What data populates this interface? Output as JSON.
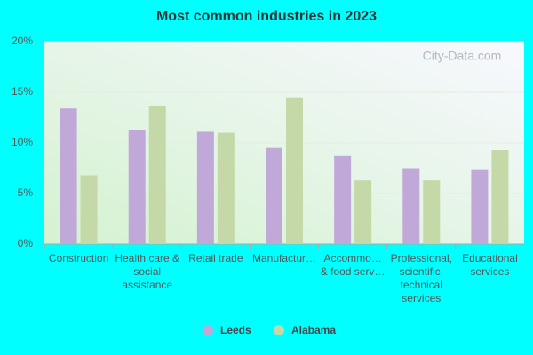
{
  "chart_data": {
    "type": "bar",
    "title": "Most common industries in 2023",
    "watermark": "City-Data.com",
    "categories": [
      "Construction",
      "Health care & social assistance",
      "Retail trade",
      "Manufactur…",
      "Accommo… & food serv…",
      "Professional, scientific, technical services",
      "Educational services"
    ],
    "series": [
      {
        "name": "Leeds",
        "color": "#c0a8d8",
        "values": [
          13.4,
          11.3,
          11.1,
          9.5,
          8.7,
          7.5,
          7.4
        ]
      },
      {
        "name": "Alabama",
        "color": "#c4d8a8",
        "values": [
          6.8,
          13.6,
          11.0,
          14.5,
          6.3,
          6.3,
          9.3
        ]
      }
    ],
    "ylim": [
      0,
      20
    ],
    "yticks": [
      {
        "value": 0,
        "label": "0%"
      },
      {
        "value": 5,
        "label": "5%"
      },
      {
        "value": 10,
        "label": "10%"
      },
      {
        "value": 15,
        "label": "15%"
      },
      {
        "value": 20,
        "label": "20%"
      }
    ],
    "grid": true
  }
}
